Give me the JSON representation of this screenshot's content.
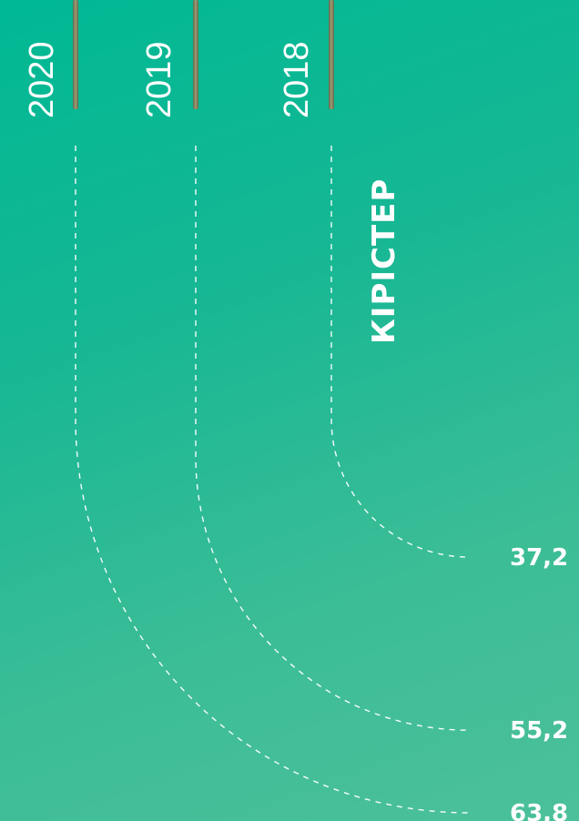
{
  "chart_data": {
    "type": "line",
    "title": "КІРІСТЕР",
    "categories": [
      "2020",
      "2019",
      "2018"
    ],
    "values": [
      63.8,
      55.2,
      37.2
    ],
    "value_labels": [
      "63,8",
      "55,2",
      "37,2"
    ]
  },
  "colors": {
    "background_start": "#00b894",
    "background_end": "#4cc09a",
    "lines": "#ffffff",
    "bar_fill": "#7f7a58"
  }
}
